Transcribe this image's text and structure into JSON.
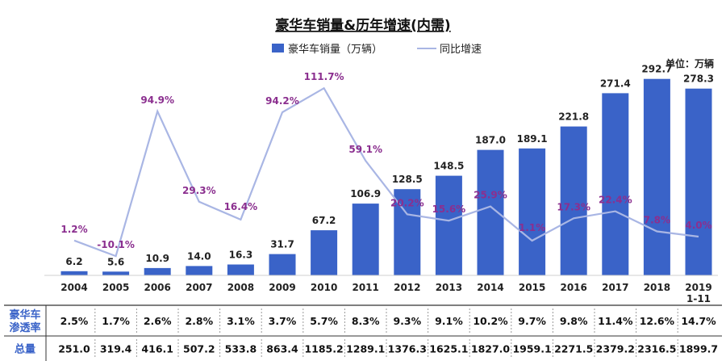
{
  "chart_data": {
    "type": "bar",
    "title": "豪华车销量&历年增速(内需)",
    "unit_note": "单位：万辆",
    "categories": [
      "2004",
      "2005",
      "2006",
      "2007",
      "2008",
      "2009",
      "2010",
      "2011",
      "2012",
      "2013",
      "2014",
      "2015",
      "2016",
      "2017",
      "2018",
      "2019"
    ],
    "category_sublabels": [
      "",
      "",
      "",
      "",
      "",
      "",
      "",
      "",
      "",
      "",
      "",
      "",
      "",
      "",
      "",
      "1-11"
    ],
    "series": [
      {
        "name": "豪华车销量（万辆）",
        "type": "bar",
        "color": "#3a63c8",
        "values": [
          6.2,
          5.6,
          10.9,
          14.0,
          16.3,
          31.7,
          67.2,
          106.9,
          128.5,
          148.5,
          187.0,
          189.1,
          221.8,
          271.4,
          292.7,
          278.3
        ],
        "labels": [
          "6.2",
          "5.6",
          "10.9",
          "14.0",
          "16.3",
          "31.7",
          "67.2",
          "106.9",
          "128.5",
          "148.5",
          "187.0",
          "189.1",
          "221.8",
          "271.4",
          "292.7",
          "278.3"
        ]
      },
      {
        "name": "同比增速",
        "type": "line",
        "color": "#a9b6e4",
        "label_color": "#8b2f8f",
        "values": [
          1.2,
          -10.1,
          94.9,
          29.3,
          16.4,
          94.2,
          111.7,
          59.1,
          20.2,
          15.6,
          25.9,
          1.1,
          17.3,
          22.4,
          7.8,
          4.0
        ],
        "labels": [
          "1.2%",
          "-10.1%",
          "94.9%",
          "29.3%",
          "16.4%",
          "94.2%",
          "111.7%",
          "59.1%",
          "20.2%",
          "15.6%",
          "25.9%",
          "1.1%",
          "17.3%",
          "22.4%",
          "7.8%",
          "4.0%"
        ]
      }
    ],
    "bar_ylim": [
      0,
      320
    ],
    "line_ylim": [
      -20,
      120
    ],
    "legend_position": "top",
    "grid": false,
    "table": {
      "rows": [
        {
          "header": [
            "豪华车",
            "渗透率"
          ],
          "values": [
            "2.5%",
            "1.7%",
            "2.6%",
            "2.8%",
            "3.1%",
            "3.7%",
            "5.7%",
            "8.3%",
            "9.3%",
            "9.1%",
            "10.2%",
            "9.7%",
            "9.8%",
            "11.4%",
            "12.6%",
            "14.7%"
          ]
        },
        {
          "header": [
            "总量"
          ],
          "values": [
            "251.0",
            "319.4",
            "416.1",
            "507.2",
            "533.8",
            "863.4",
            "1185.2",
            "1289.1",
            "1376.3",
            "1625.1",
            "1827.0",
            "1959.1",
            "2271.5",
            "2379.2",
            "2316.5",
            "1899.7"
          ]
        }
      ],
      "header_color": "#3a63c8"
    }
  }
}
